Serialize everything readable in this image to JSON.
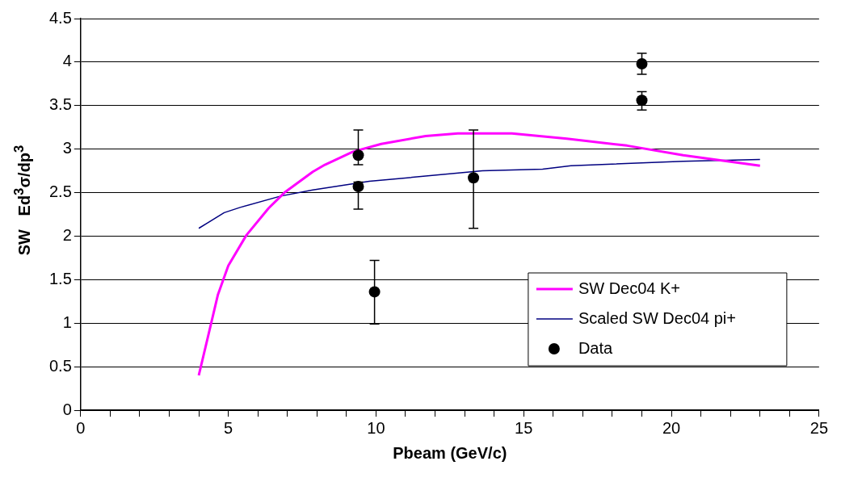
{
  "chart_data": {
    "type": "line",
    "xlabel": "Pbeam (GeV/c)",
    "ylabel": "SW   Ed$^{3}$σ/dp$^{3}$",
    "xlim": [
      0,
      25
    ],
    "xticks": [
      0,
      {
        "value": 1,
        "label": null
      },
      {
        "value": 2,
        "label": null
      },
      {
        "value": 3,
        "label": null
      },
      {
        "value": 4,
        "label": null
      },
      5,
      {
        "value": 6,
        "label": null
      },
      {
        "value": 7,
        "label": null
      },
      {
        "value": 8,
        "label": null
      },
      {
        "value": 9,
        "label": null
      },
      10,
      {
        "value": 11,
        "label": null
      },
      {
        "value": 12,
        "label": null
      },
      {
        "value": 13,
        "label": null
      },
      {
        "value": 14,
        "label": null
      },
      15,
      {
        "value": 16,
        "label": null
      },
      {
        "value": 17,
        "label": null
      },
      {
        "value": 18,
        "label": null
      },
      {
        "value": 19,
        "label": null
      },
      20,
      {
        "value": 21,
        "label": null
      },
      {
        "value": 22,
        "label": null
      },
      {
        "value": 23,
        "label": null
      },
      {
        "value": 24,
        "label": null
      },
      25
    ],
    "ylim": [
      0,
      4.5
    ],
    "yticks": [
      0,
      0.5,
      1,
      1.5,
      2,
      2.5,
      3,
      3.5,
      4,
      4.5
    ],
    "grid": "y",
    "legend": "bottom right",
    "series": [
      {
        "name": "SW Dec04 K+",
        "type": "line",
        "color": "#ff00ff",
        "marker": "none",
        "x": [
          4,
          4.65,
          5,
          5.61,
          6.36,
          6.9,
          7.86,
          8.27,
          9.22,
          10.18,
          11.68,
          12.77,
          14.6,
          16.46,
          18.5,
          20.4,
          23
        ],
        "values": [
          0.4,
          1.33,
          1.66,
          2.01,
          2.32,
          2.5,
          2.74,
          2.82,
          2.97,
          3.06,
          3.15,
          3.18,
          3.18,
          3.12,
          3.04,
          2.93,
          2.81
        ]
      },
      {
        "name": "Scaled SW Dec04 pi+",
        "type": "line",
        "color": "#000080",
        "marker": "none",
        "x": [
          4,
          4.86,
          5.4,
          6.77,
          7.86,
          9.77,
          13.6,
          15.64,
          16.6,
          20.4,
          23
        ],
        "values": [
          2.09,
          2.27,
          2.33,
          2.46,
          2.53,
          2.63,
          2.75,
          2.77,
          2.81,
          2.86,
          2.88
        ]
      },
      {
        "name": "Data",
        "type": "scatter",
        "color": "#000000",
        "marker": "circle",
        "x": [
          9.4,
          9.4,
          9.95,
          13.3,
          19,
          19
        ],
        "values": [
          2.93,
          2.57,
          1.36,
          2.67,
          3.98,
          3.56
        ],
        "errors": [
          [
            2.82,
            3.22
          ],
          [
            2.31,
            2.62
          ],
          [
            0.99,
            1.72
          ],
          [
            2.09,
            3.22
          ],
          [
            3.86,
            4.1
          ],
          [
            3.45,
            3.66
          ]
        ]
      }
    ]
  }
}
